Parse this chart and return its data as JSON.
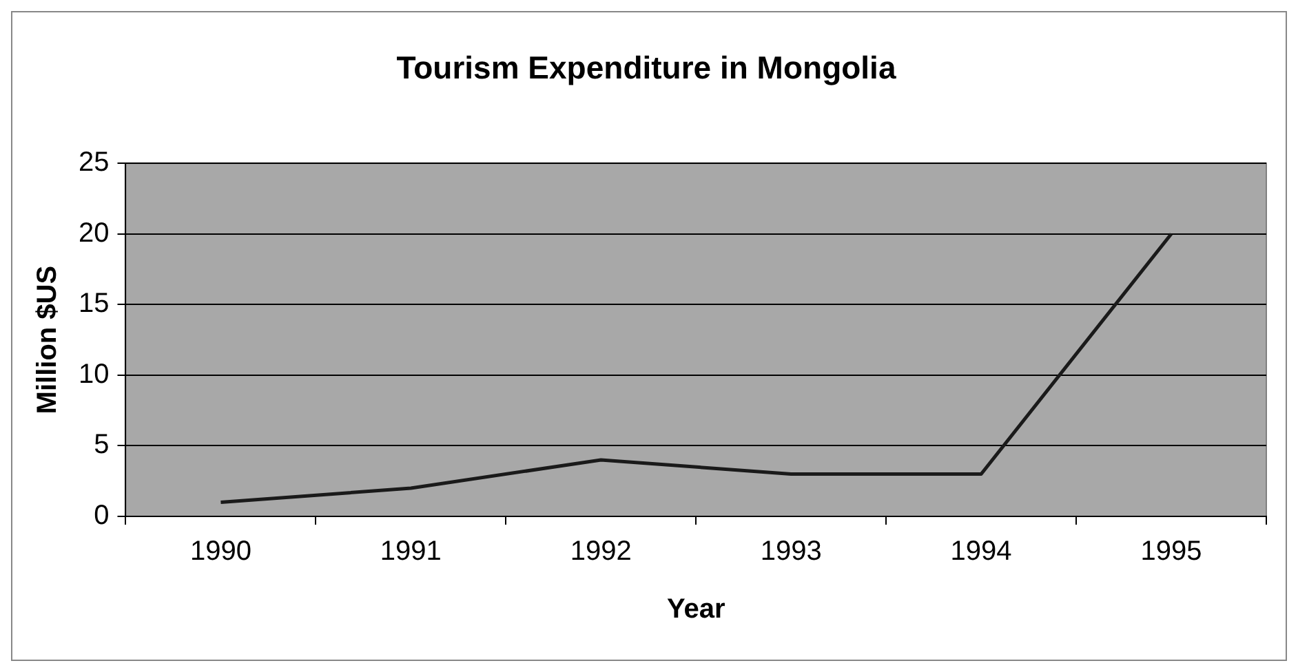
{
  "chart_data": {
    "type": "line",
    "title": "Tourism Expenditure in Mongolia",
    "xlabel": "Year",
    "ylabel": "Million $US",
    "categories": [
      "1990",
      "1991",
      "1992",
      "1993",
      "1994",
      "1995"
    ],
    "series": [
      {
        "color": "#1a1a1a",
        "values": [
          1,
          2,
          4,
          3,
          3,
          20
        ]
      }
    ],
    "ylim": [
      0,
      25
    ],
    "yticks": [
      0,
      5,
      10,
      15,
      20,
      25
    ],
    "grid": "y",
    "legend": false,
    "marker": "none",
    "line_style": "solid"
  }
}
